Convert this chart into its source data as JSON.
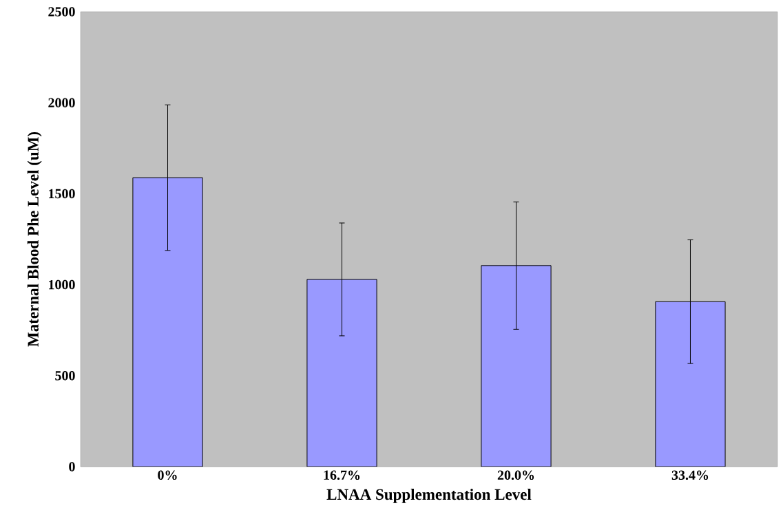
{
  "chart_data": {
    "type": "bar",
    "xlabel": "LNAA Supplementation Level",
    "ylabel": "Maternal Blood Phe Level (uM)",
    "categories": [
      "0%",
      "16.7%",
      "20.0%",
      "33.4%"
    ],
    "values": [
      1588,
      1029,
      1105,
      907
    ],
    "errors": [
      400,
      310,
      350,
      340
    ],
    "color": "#9999ff",
    "ylim": [
      0,
      2500
    ],
    "yticks": [
      0,
      500,
      1000,
      1500,
      2000,
      2500
    ],
    "grid": false
  }
}
